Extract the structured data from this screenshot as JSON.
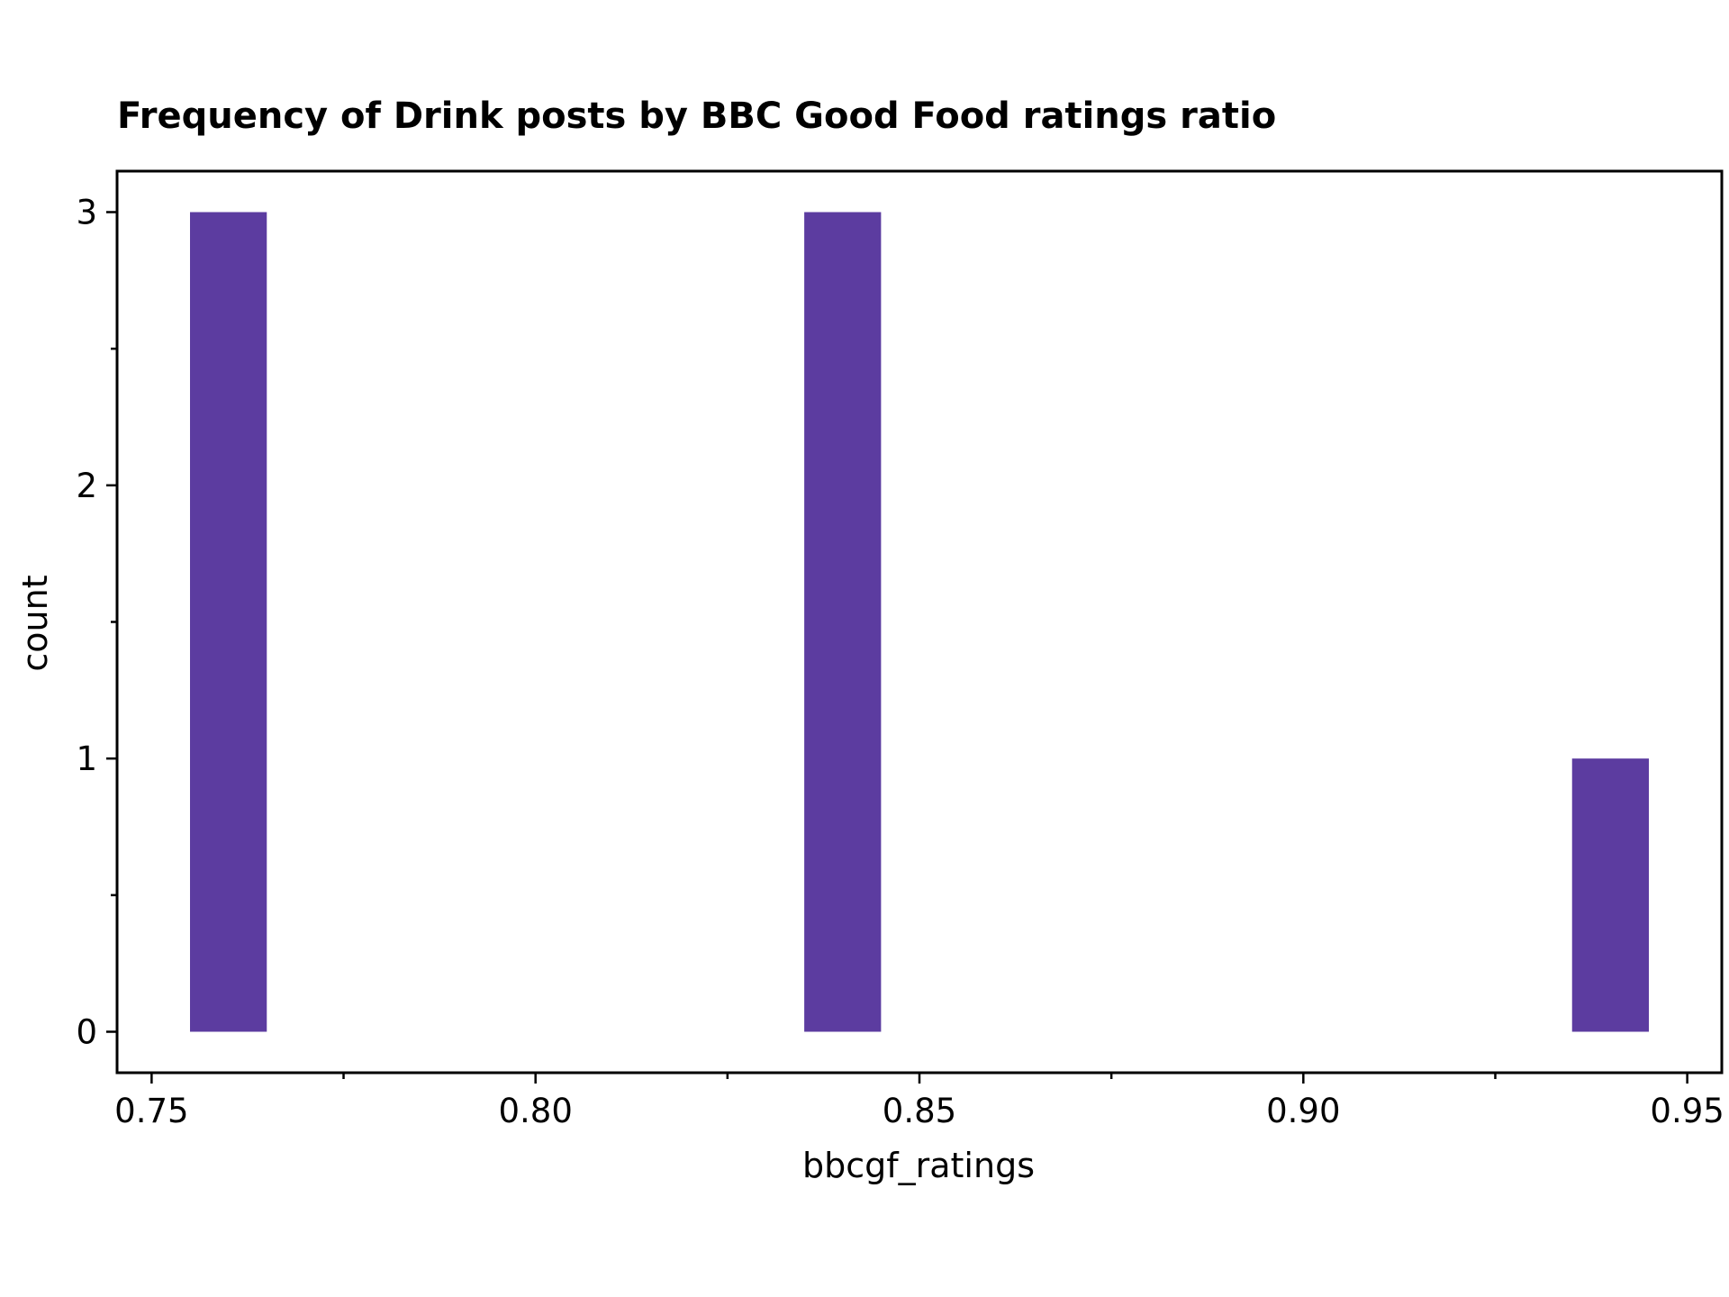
{
  "chart_data": {
    "type": "bar",
    "title": "Frequency of Drink posts by BBC Good Food ratings ratio",
    "xlabel": "bbcgf_ratings",
    "ylabel": "count",
    "bar_color": "#5c3ca0",
    "xlim": [
      0.7455,
      0.9545
    ],
    "ylim": [
      -0.15,
      3.15
    ],
    "bins": [
      {
        "x0": 0.755,
        "x1": 0.765,
        "count": 3
      },
      {
        "x0": 0.835,
        "x1": 0.845,
        "count": 3
      },
      {
        "x0": 0.935,
        "x1": 0.945,
        "count": 1
      }
    ],
    "x_ticks": [
      {
        "value": 0.75,
        "label": "0.75"
      },
      {
        "value": 0.8,
        "label": "0.80"
      },
      {
        "value": 0.85,
        "label": "0.85"
      },
      {
        "value": 0.9,
        "label": "0.90"
      },
      {
        "value": 0.95,
        "label": "0.95"
      }
    ],
    "x_minor_ticks": [
      0.775,
      0.825,
      0.875,
      0.925
    ],
    "y_ticks": [
      {
        "value": 0,
        "label": "0"
      },
      {
        "value": 1,
        "label": "1"
      },
      {
        "value": 2,
        "label": "2"
      },
      {
        "value": 3,
        "label": "3"
      }
    ],
    "y_minor_ticks": [
      0.5,
      1.5,
      2.5
    ],
    "grid": false,
    "legend": "none"
  }
}
